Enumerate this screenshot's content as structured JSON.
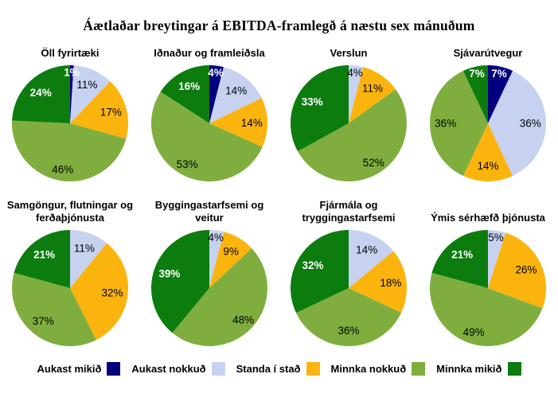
{
  "title": "Áætlaðar breytingar á EBITDA-framlegð á næstu sex mánuðum",
  "legend": {
    "items": [
      {
        "label": "Aukast mikið",
        "color": "#00007e"
      },
      {
        "label": "Aukast nokkuð",
        "color": "#c6d2f0"
      },
      {
        "label": "Standa í stað",
        "color": "#fbb40e"
      },
      {
        "label": "Minnka nokkuð",
        "color": "#7fae3f"
      },
      {
        "label": "Minnka mikið",
        "color": "#0c7c0e"
      }
    ]
  },
  "chart_data": [
    {
      "type": "pie",
      "title": "Öll fyrirtæki",
      "categories": [
        "Aukast mikið",
        "Aukast nokkuð",
        "Standa í stað",
        "Minnka nokkuð",
        "Minnka mikið"
      ],
      "values": [
        1,
        11,
        17,
        46,
        24
      ]
    },
    {
      "type": "pie",
      "title": "Iðnaður og framleiðsla",
      "categories": [
        "Aukast mikið",
        "Aukast nokkuð",
        "Standa í stað",
        "Minnka nokkuð",
        "Minnka mikið"
      ],
      "values": [
        4,
        14,
        14,
        53,
        16
      ]
    },
    {
      "type": "pie",
      "title": "Verslun",
      "categories": [
        "Aukast mikið",
        "Aukast nokkuð",
        "Standa í stað",
        "Minnka nokkuð",
        "Minnka mikið"
      ],
      "values": [
        0,
        4,
        11,
        52,
        33
      ]
    },
    {
      "type": "pie",
      "title": "Sjávarútvegur",
      "categories": [
        "Aukast mikið",
        "Aukast nokkuð",
        "Standa í stað",
        "Minnka nokkuð",
        "Minnka mikið"
      ],
      "values": [
        7,
        36,
        14,
        36,
        7
      ]
    },
    {
      "type": "pie",
      "title": "Samgöngur, flutningar og ferðaþjónusta",
      "categories": [
        "Aukast mikið",
        "Aukast nokkuð",
        "Standa í stað",
        "Minnka nokkuð",
        "Minnka mikið"
      ],
      "values": [
        0,
        11,
        32,
        37,
        21
      ]
    },
    {
      "type": "pie",
      "title": "Byggingastarfsemi og veitur",
      "categories": [
        "Aukast mikið",
        "Aukast nokkuð",
        "Standa í stað",
        "Minnka nokkuð",
        "Minnka mikið"
      ],
      "values": [
        0,
        4,
        9,
        48,
        39
      ]
    },
    {
      "type": "pie",
      "title": "Fjármála og tryggingastarfsemi",
      "categories": [
        "Aukast mikið",
        "Aukast nokkuð",
        "Standa í stað",
        "Minnka nokkuð",
        "Minnka mikið"
      ],
      "values": [
        0,
        14,
        18,
        36,
        32
      ]
    },
    {
      "type": "pie",
      "title": "Ýmis sérhæfð þjónusta",
      "categories": [
        "Aukast mikið",
        "Aukast nokkuð",
        "Standa í stað",
        "Minnka nokkuð",
        "Minnka mikið"
      ],
      "values": [
        0,
        5,
        26,
        49,
        21
      ]
    }
  ]
}
